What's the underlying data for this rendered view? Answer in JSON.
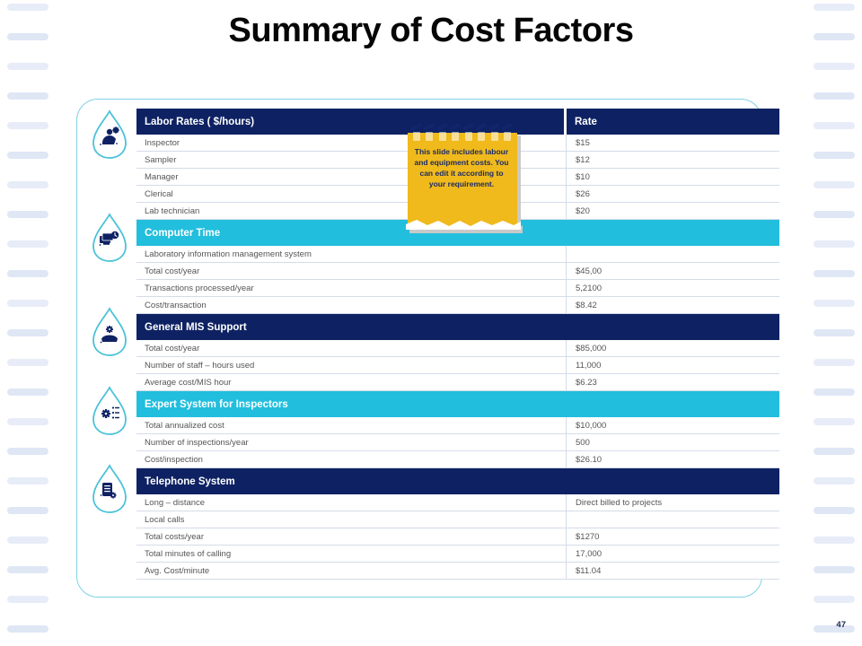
{
  "slide": {
    "title": "Summary of Cost Factors",
    "page_number": "47"
  },
  "note": {
    "text": "This slide includes labour and equipment costs. You can edit it according to your requirement."
  },
  "table": {
    "header": {
      "col1": "Labor Rates ( $/hours)",
      "col2": "Rate"
    },
    "sections": [
      {
        "title": null,
        "style": null,
        "rows": [
          [
            "Inspector",
            "$15"
          ],
          [
            "Sampler",
            "$12"
          ],
          [
            "Manager",
            "$10"
          ],
          [
            "Clerical",
            "$26"
          ],
          [
            "Lab technician",
            "$20"
          ]
        ]
      },
      {
        "title": "Computer Time",
        "style": "cyan",
        "rows": [
          [
            "Laboratory information management system",
            ""
          ],
          [
            "Total cost/year",
            "$45,00"
          ],
          [
            "Transactions processed/year",
            "5,2100"
          ],
          [
            "Cost/transaction",
            "$8.42"
          ]
        ]
      },
      {
        "title": "General MIS Support",
        "style": "navy",
        "rows": [
          [
            "Total cost/year",
            "$85,000"
          ],
          [
            "Number of staff – hours used",
            "11,000"
          ],
          [
            "Average cost/MIS hour",
            "$6.23"
          ]
        ]
      },
      {
        "title": "Expert System for Inspectors",
        "style": "cyan",
        "rows": [
          [
            "Total annualized cost",
            "$10,000"
          ],
          [
            "Number of inspections/year",
            "500"
          ],
          [
            "Cost/inspection",
            "$26.10"
          ]
        ]
      },
      {
        "title": "Telephone System",
        "style": "navy",
        "rows": [
          [
            "Long – distance",
            "Direct billed to projects"
          ],
          [
            "Local calls",
            ""
          ],
          [
            "Total costs/year",
            "$1270"
          ],
          [
            "Total minutes of calling",
            "17,000"
          ],
          [
            "Avg. Cost/minute",
            "$11.04"
          ]
        ]
      }
    ]
  },
  "icons": {
    "drops": [
      "labor-rates-icon",
      "computer-time-icon",
      "mis-support-icon",
      "expert-system-icon",
      "telephone-system-icon"
    ]
  },
  "colors": {
    "navy": "#0e2263",
    "cyan": "#22bedd",
    "panel_border": "#7fd2e2",
    "note_yellow": "#f0ba1c",
    "note_text": "#1c2a66",
    "row_text": "#555555",
    "divider": "#d4dce9",
    "dash": "#e7ecf8",
    "drop_outline": "#49c2d8"
  }
}
